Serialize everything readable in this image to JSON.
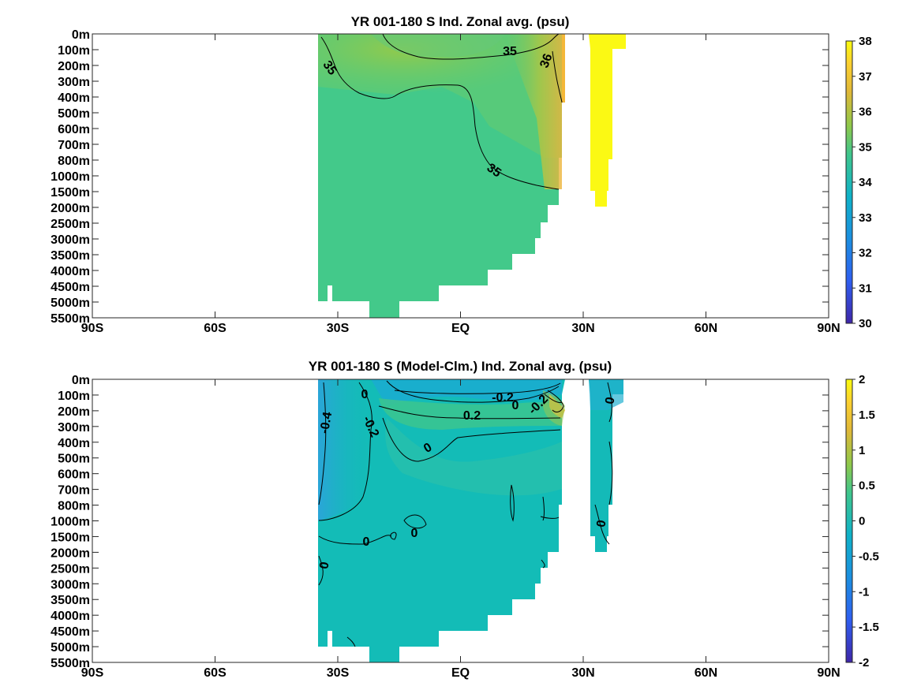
{
  "chart_data": [
    {
      "type": "heatmap",
      "title": "YR 001-180 S Ind. Zonal avg. (psu)",
      "depth_labels": [
        "0m",
        "100m",
        "200m",
        "300m",
        "400m",
        "500m",
        "600m",
        "700m",
        "800m",
        "1000m",
        "1500m",
        "2000m",
        "2500m",
        "3000m",
        "3500m",
        "4000m",
        "4500m",
        "5000m",
        "5500m"
      ],
      "lat_labels": [
        "90S",
        "60S",
        "30S",
        "EQ",
        "30N",
        "60N",
        "90N"
      ],
      "lat_range": [
        -90,
        90
      ],
      "colorbar": {
        "ticks": [
          "38",
          "37",
          "36",
          "35",
          "34",
          "33",
          "32",
          "31",
          "30"
        ],
        "range": [
          30,
          38
        ]
      },
      "contour_labels": [
        "35",
        "36",
        "35",
        "35"
      ],
      "contour_levels": [
        35,
        36
      ]
    },
    {
      "type": "heatmap",
      "title": "YR 001-180 S (Model-Clm.) Ind. Zonal avg. (psu)",
      "depth_labels": [
        "0m",
        "100m",
        "200m",
        "300m",
        "400m",
        "500m",
        "600m",
        "700m",
        "800m",
        "1000m",
        "1500m",
        "2000m",
        "2500m",
        "3000m",
        "3500m",
        "4000m",
        "4500m",
        "5000m",
        "5500m"
      ],
      "lat_labels": [
        "90S",
        "60S",
        "30S",
        "EQ",
        "30N",
        "60N",
        "90N"
      ],
      "lat_range": [
        -90,
        90
      ],
      "colorbar": {
        "ticks": [
          "2",
          "1.5",
          "1",
          "0.5",
          "0",
          "-0.5",
          "-1",
          "-1.5",
          "-2"
        ],
        "range": [
          -2,
          2
        ]
      },
      "contour_labels": [
        "0",
        "-0.4",
        "-0.2",
        "-0.2",
        "0",
        "-0.2",
        "0.2",
        "0",
        "0",
        "0",
        "0",
        "0",
        "0"
      ],
      "contour_levels": [
        -0.4,
        -0.2,
        0,
        0.2
      ]
    }
  ],
  "colors": {
    "panel1_fill": "#43c98a",
    "panel1_deep": "#40c88e",
    "panel1_salty": "#a6c73c",
    "panel1_high": "#f5b936",
    "panel1_max": "#fcfc14",
    "panel2_fill": "#13bcb7",
    "panel2_low": "#2aa6d8",
    "panel2_hi": "#86c95c"
  }
}
